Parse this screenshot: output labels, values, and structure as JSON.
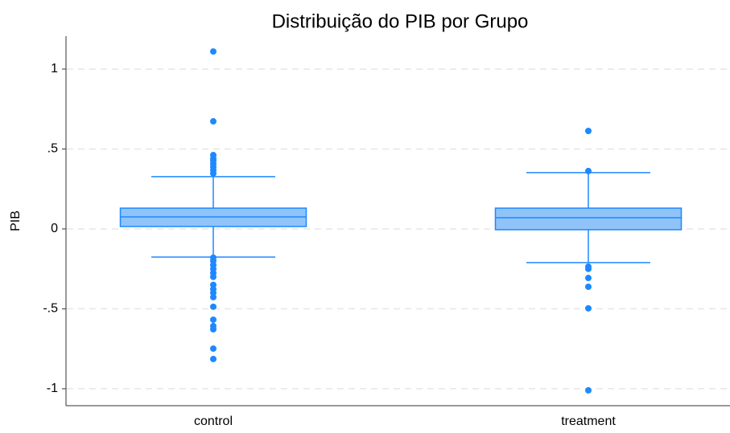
{
  "chart_data": {
    "type": "box",
    "title": "Distribuição do PIB por Grupo",
    "y_label": "PIB",
    "color": "#1e88ff",
    "fill": "#90c4f8",
    "grid": true,
    "ylim": [
      -1.106,
      1.206
    ],
    "yticks": [
      1,
      {
        "value": 0.5,
        "label": ".5"
      },
      0,
      {
        "value": -0.5,
        "label": "-.5"
      },
      -1
    ],
    "boxes": [
      {
        "name": "control",
        "whisker_low": -0.176,
        "q1": 0.015,
        "median": 0.075,
        "q3": 0.13,
        "whisker_high": 0.327,
        "outliers": [
          1.11,
          0.673,
          0.462,
          0.44,
          0.427,
          0.407,
          0.387,
          0.367,
          0.347,
          -0.18,
          -0.2,
          -0.226,
          -0.25,
          -0.276,
          -0.3,
          -0.35,
          -0.377,
          -0.4,
          -0.427,
          -0.487,
          -0.568,
          -0.608,
          -0.628,
          -0.749,
          -0.814
        ]
      },
      {
        "name": "treatment",
        "whisker_low": -0.211,
        "q1": -0.005,
        "median": 0.07,
        "q3": 0.13,
        "whisker_high": 0.352,
        "outliers": [
          0.613,
          0.362,
          -0.236,
          -0.25,
          -0.307,
          -0.362,
          -0.497,
          -1.01
        ]
      }
    ]
  }
}
